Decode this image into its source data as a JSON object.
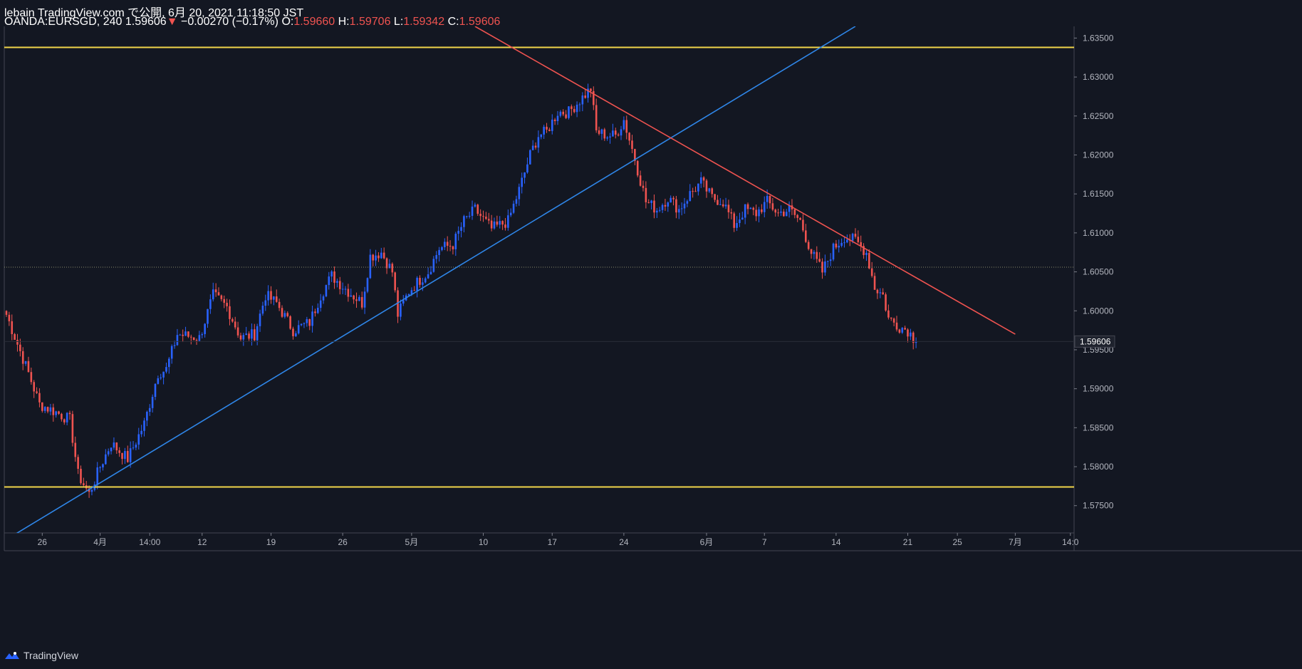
{
  "header": {
    "publish_line": "lebain TradingView.com で公開, 6月 20, 2021 11:18:50 JST",
    "symbol": "OANDA:EURSGD, 240",
    "last_price": "1.59606",
    "change_arrow": "▼",
    "change": "−0.00270 (−0.17%)",
    "open_label": "O:",
    "open": "1.59660",
    "high_label": "H:",
    "high": "1.59706",
    "low_label": "L:",
    "low": "1.59342",
    "close_label": "C:",
    "close": "1.59606"
  },
  "footer": {
    "brand": "TradingView"
  },
  "colors": {
    "background": "#131722",
    "up": "#2962ff",
    "down": "#ef5350",
    "support_resistance": "#f0d54a",
    "uptrend": "#2f86e8",
    "downtrend": "#ef5350",
    "grid": "#1f2433",
    "axis_text": "#b2b5be"
  },
  "chart_data": {
    "type": "candlestick",
    "title": "OANDA:EURSGD, 240",
    "ylim": [
      1.5715,
      1.6365
    ],
    "y_ticks": [
      "1.63500",
      "1.63000",
      "1.62500",
      "1.62000",
      "1.61500",
      "1.61000",
      "1.60500",
      "1.60000",
      "1.59500",
      "1.59000",
      "1.58500",
      "1.58000",
      "1.57500"
    ],
    "x_ticks": [
      "26",
      "4月",
      "14:00",
      "12",
      "19",
      "26",
      "5月",
      "10",
      "17",
      "24",
      "6月",
      "7",
      "14",
      "21",
      "25",
      "7月",
      "14:0"
    ],
    "current_price_label": "1.59606",
    "last_close": 1.59606,
    "dotted_level": 1.6056,
    "horizontal_lines": [
      1.6338,
      1.5774
    ],
    "trendlines": [
      {
        "name": "uptrend",
        "start": {
          "bar_index": 3,
          "price": 1.5713
        },
        "end": {
          "bar_index": 308,
          "price": 1.6365
        }
      },
      {
        "name": "downtrend",
        "start": {
          "bar_index": 170,
          "price": 1.6365
        },
        "end": {
          "bar_index": 366,
          "price": 1.597
        }
      }
    ],
    "close_path": [
      [
        0,
        1.5995
      ],
      [
        8,
        1.592
      ],
      [
        12,
        1.588
      ],
      [
        18,
        1.587
      ],
      [
        23,
        1.586
      ],
      [
        26,
        1.579
      ],
      [
        30,
        1.5765
      ],
      [
        34,
        1.58
      ],
      [
        38,
        1.583
      ],
      [
        44,
        1.581
      ],
      [
        50,
        1.5855
      ],
      [
        55,
        1.592
      ],
      [
        58,
        1.5925
      ],
      [
        62,
        1.597
      ],
      [
        70,
        1.5965
      ],
      [
        75,
        1.602
      ],
      [
        80,
        1.6005
      ],
      [
        85,
        1.5965
      ],
      [
        90,
        1.597
      ],
      [
        94,
        1.602
      ],
      [
        98,
        1.601
      ],
      [
        104,
        1.5975
      ],
      [
        110,
        1.5985
      ],
      [
        114,
        1.602
      ],
      [
        118,
        1.6045
      ],
      [
        124,
        1.6025
      ],
      [
        129,
        1.601
      ],
      [
        132,
        1.607
      ],
      [
        136,
        1.6075
      ],
      [
        140,
        1.605
      ],
      [
        142,
        1.5995
      ],
      [
        146,
        1.6025
      ],
      [
        150,
        1.604
      ],
      [
        153,
        1.605
      ],
      [
        157,
        1.608
      ],
      [
        162,
        1.6085
      ],
      [
        166,
        1.6115
      ],
      [
        170,
        1.613
      ],
      [
        176,
        1.6105
      ],
      [
        182,
        1.6115
      ],
      [
        186,
        1.6155
      ],
      [
        190,
        1.62
      ],
      [
        193,
        1.6225
      ],
      [
        196,
        1.623
      ],
      [
        200,
        1.6255
      ],
      [
        204,
        1.6255
      ],
      [
        208,
        1.627
      ],
      [
        212,
        1.6285
      ],
      [
        214,
        1.623
      ],
      [
        218,
        1.6225
      ],
      [
        221,
        1.6225
      ],
      [
        224,
        1.6245
      ],
      [
        228,
        1.6195
      ],
      [
        232,
        1.614
      ],
      [
        236,
        1.613
      ],
      [
        240,
        1.6145
      ],
      [
        244,
        1.613
      ],
      [
        248,
        1.615
      ],
      [
        252,
        1.6165
      ],
      [
        256,
        1.6145
      ],
      [
        260,
        1.614
      ],
      [
        264,
        1.611
      ],
      [
        268,
        1.613
      ],
      [
        272,
        1.6125
      ],
      [
        276,
        1.614
      ],
      [
        280,
        1.6125
      ],
      [
        284,
        1.613
      ],
      [
        288,
        1.6115
      ],
      [
        292,
        1.6075
      ],
      [
        296,
        1.605
      ],
      [
        300,
        1.608
      ],
      [
        304,
        1.6095
      ],
      [
        308,
        1.609
      ],
      [
        312,
        1.6075
      ],
      [
        315,
        1.603
      ],
      [
        318,
        1.602
      ],
      [
        320,
        1.599
      ],
      [
        324,
        1.598
      ],
      [
        327,
        1.5975
      ],
      [
        330,
        1.59606
      ]
    ]
  }
}
